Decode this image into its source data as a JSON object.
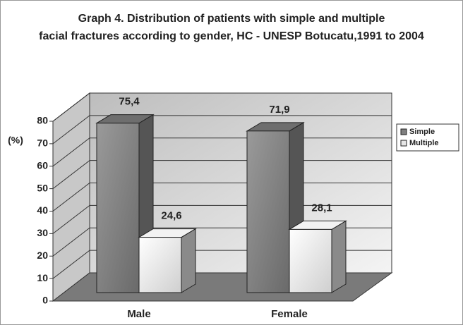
{
  "chart_data": {
    "type": "bar3d",
    "title": [
      "Graph 4. Distribution of patients with simple and multiple",
      "facial fractures according to gender, HC - UNESP Botucatu,1991 to 2004"
    ],
    "y_label": "(%)",
    "categories": [
      "Male",
      "Female"
    ],
    "series": [
      {
        "name": "Simple",
        "color": "#7f7f7f",
        "values": [
          75.4,
          71.9
        ],
        "value_labels": [
          "75,4",
          "71,9"
        ]
      },
      {
        "name": "Multiple",
        "color": "#e6e6e6",
        "values": [
          24.6,
          28.1
        ],
        "value_labels": [
          "24,6",
          "28,1"
        ]
      }
    ],
    "ylim": [
      0,
      80
    ],
    "yticks": [
      0,
      10,
      20,
      30,
      40,
      50,
      60,
      70,
      80
    ],
    "grid": true,
    "legend": "right"
  }
}
